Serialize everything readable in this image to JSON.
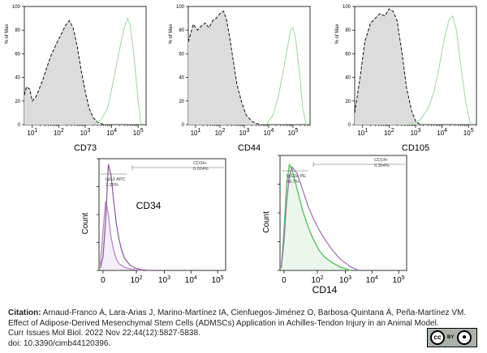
{
  "chart_data": [
    {
      "type": "area",
      "xlabel": "CD73",
      "ylabel": "% of Max",
      "x_scale": "log",
      "xlim": [
        5,
        200000
      ],
      "ylim": [
        0,
        100
      ],
      "xtick_labels": [
        "10^1",
        "10^2",
        "10^3",
        "10^4",
        "10^5"
      ],
      "ytick_labels": [
        "0",
        "20",
        "40",
        "60",
        "80",
        "100"
      ],
      "series": [
        {
          "style": "isotype-dashed-gray-fill",
          "x": [
            5,
            6,
            8,
            10,
            14,
            18,
            25,
            35,
            50,
            80,
            120,
            180,
            250,
            350,
            500,
            700,
            1000,
            1400,
            2000,
            3000,
            5000
          ],
          "y": [
            25,
            32,
            30,
            20,
            24,
            30,
            38,
            48,
            58,
            68,
            76,
            84,
            88,
            82,
            66,
            46,
            28,
            14,
            6,
            2,
            0
          ]
        },
        {
          "style": "stained-light-green-line",
          "x": [
            2000,
            4000,
            7000,
            10000,
            15000,
            20000,
            30000,
            40000,
            50000,
            70000,
            100000,
            130000
          ],
          "y": [
            0,
            4,
            14,
            30,
            50,
            64,
            82,
            90,
            84,
            58,
            20,
            0
          ]
        }
      ]
    },
    {
      "type": "area",
      "xlabel": "CD44",
      "ylabel": "% of Max",
      "x_scale": "log",
      "xlim": [
        5,
        500000
      ],
      "ylim": [
        0,
        100
      ],
      "xtick_labels": [
        "10^1",
        "10^2",
        "10^3",
        "10^4",
        "10^5"
      ],
      "ytick_labels": [
        "0",
        "20",
        "40",
        "60",
        "80",
        "100"
      ],
      "series": [
        {
          "style": "isotype-dashed-gray-fill",
          "x": [
            5,
            8,
            12,
            18,
            25,
            35,
            50,
            70,
            100,
            140,
            180,
            250,
            350,
            500,
            800,
            1200,
            2000,
            3000,
            5000
          ],
          "y": [
            70,
            85,
            80,
            84,
            86,
            82,
            88,
            90,
            94,
            96,
            90,
            74,
            54,
            34,
            18,
            8,
            3,
            1,
            0
          ]
        },
        {
          "style": "stained-light-green-line",
          "x": [
            8000,
            15000,
            25000,
            40000,
            60000,
            80000,
            100000,
            130000,
            180000,
            250000,
            350000
          ],
          "y": [
            0,
            8,
            24,
            46,
            66,
            80,
            82,
            72,
            46,
            14,
            0
          ]
        }
      ]
    },
    {
      "type": "area",
      "xlabel": "CD105",
      "ylabel": "% of Max",
      "x_scale": "log",
      "xlim": [
        5,
        200000
      ],
      "ylim": [
        0,
        100
      ],
      "xtick_labels": [
        "10^1",
        "10^2",
        "10^3",
        "10^4",
        "10^5"
      ],
      "ytick_labels": [
        "0",
        "20",
        "40",
        "60",
        "80",
        "100"
      ],
      "series": [
        {
          "style": "isotype-dashed-gray-fill",
          "x": [
            5,
            8,
            12,
            20,
            30,
            45,
            70,
            100,
            140,
            200,
            300,
            450,
            700,
            1000,
            1500
          ],
          "y": [
            10,
            40,
            70,
            86,
            90,
            94,
            92,
            98,
            96,
            88,
            62,
            32,
            12,
            3,
            0
          ]
        },
        {
          "style": "stained-light-green-line",
          "x": [
            600,
            1500,
            3000,
            5000,
            8000,
            12000,
            18000,
            25000,
            35000,
            50000,
            80000,
            120000
          ],
          "y": [
            0,
            4,
            14,
            28,
            50,
            72,
            88,
            92,
            80,
            52,
            18,
            0
          ]
        }
      ]
    },
    {
      "type": "area",
      "xlabel": "CD34",
      "ylabel": "Count",
      "x_scale": "logicle",
      "xtick_labels": [
        "0",
        "10^2",
        "10^3",
        "10^4",
        "10^5"
      ],
      "annotations": [
        {
          "lines": [
            "CD34+",
            "0.024%"
          ]
        },
        {
          "lines": [
            "IgG1 APC",
            "1.28%"
          ]
        }
      ],
      "series": [
        {
          "style": "isotype-purple-line",
          "x": [
            -0.1,
            0.0,
            0.1,
            0.2,
            0.3,
            0.4,
            0.5,
            0.6,
            0.8,
            1.0,
            1.2,
            1.5
          ],
          "y": [
            0.05,
            0.35,
            0.62,
            0.5,
            0.3,
            0.18,
            0.1,
            0.06,
            0.03,
            0.015,
            0.005,
            0.0
          ]
        },
        {
          "style": "stained-dark-purple-line",
          "x": [
            -0.1,
            0.0,
            0.1,
            0.2,
            0.3,
            0.4,
            0.5,
            0.6,
            0.7,
            0.8,
            1.0,
            1.2,
            1.5,
            1.8
          ],
          "y": [
            0.02,
            0.12,
            0.45,
            0.95,
            0.85,
            0.62,
            0.42,
            0.28,
            0.18,
            0.11,
            0.05,
            0.02,
            0.005,
            0.0
          ]
        }
      ]
    },
    {
      "type": "area",
      "xlabel": "CD14",
      "ylabel": "Count",
      "x_scale": "logicle",
      "xtick_labels": [
        "0",
        "10^2",
        "10^3",
        "10^4",
        "10^5"
      ],
      "annotations": [
        {
          "lines": [
            "CD14+",
            "0.304%"
          ]
        },
        {
          "lines": [
            "IgG2a PE",
            "99.7%"
          ]
        }
      ],
      "series": [
        {
          "style": "isotype-green-line",
          "x": [
            -0.1,
            0.0,
            0.1,
            0.2,
            0.3,
            0.5,
            0.7,
            0.9,
            1.1,
            1.3,
            1.5,
            1.8,
            2.1,
            2.5
          ],
          "y": [
            0.02,
            0.35,
            0.75,
            0.92,
            0.88,
            0.7,
            0.52,
            0.38,
            0.27,
            0.18,
            0.12,
            0.07,
            0.03,
            0.0
          ]
        },
        {
          "style": "stained-purple-line",
          "x": [
            -0.1,
            0.0,
            0.1,
            0.2,
            0.3,
            0.5,
            0.7,
            0.9,
            1.1,
            1.3,
            1.5,
            1.8,
            2.1,
            2.5,
            2.8
          ],
          "y": [
            0.02,
            0.25,
            0.6,
            0.82,
            0.9,
            0.84,
            0.7,
            0.56,
            0.45,
            0.36,
            0.28,
            0.18,
            0.1,
            0.03,
            0.0
          ]
        }
      ]
    }
  ],
  "citation": {
    "label": "Citation:",
    "line1": " Arnaud-Franco Á, Lara-Arias J, Marino-Martínez IA, Cienfuegos-Jiménez O, Barbosa-Quintana Á, Peña-Martínez VM.",
    "line2": "Effect of Adipose-Derived Mesenchymal Stem Cells (ADMSCs) Application in Achilles-Tendon Injury in an Animal Model.",
    "line3": "Curr Issues Mol Biol. 2022 Nov 22;44(12):5827-5838.",
    "line4": "doi: 10.3390/cimb44120396."
  },
  "license_badge": {
    "circle1": "cc",
    "by_text": "BY"
  }
}
